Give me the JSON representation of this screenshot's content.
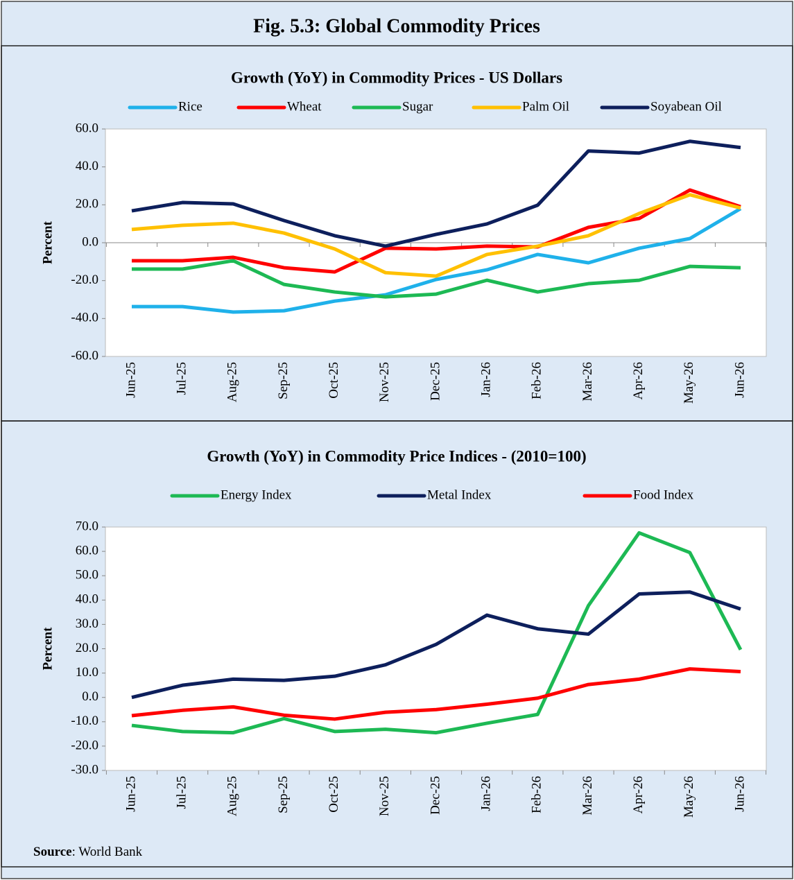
{
  "title": "Fig. 5.3: Global Commodity Prices",
  "source_label": "Source",
  "source_text": ": World Bank",
  "chart_data": [
    {
      "type": "line",
      "title": "Growth (YoY) in Commodity Prices - US Dollars",
      "y_label": "Percent",
      "categories": [
        "Jun-25",
        "Jul-25",
        "Aug-25",
        "Sep-25",
        "Oct-25",
        "Nov-25",
        "Dec-25",
        "Jan-26",
        "Feb-26",
        "Mar-26",
        "Apr-26",
        "May-26",
        "Jun-26"
      ],
      "series": [
        {
          "name": "Rice",
          "color": "#1fb1ea",
          "values": [
            -33.7,
            -33.7,
            -36.6,
            -35.9,
            -30.8,
            -27.5,
            -19.4,
            -14.3,
            -6.2,
            -10.6,
            -2.9,
            2.2,
            18.0
          ]
        },
        {
          "name": "Wheat",
          "color": "#ff0000",
          "values": [
            -9.5,
            -9.5,
            -7.7,
            -13.2,
            -15.4,
            -2.9,
            -3.3,
            -1.8,
            -2.2,
            8.1,
            12.8,
            27.8,
            19.0
          ]
        },
        {
          "name": "Sugar",
          "color": "#1db954",
          "values": [
            -13.9,
            -13.9,
            -9.5,
            -22.0,
            -26.0,
            -28.6,
            -27.1,
            -19.8,
            -26.0,
            -21.6,
            -19.8,
            -12.5,
            -13.2
          ]
        },
        {
          "name": "Palm Oil",
          "color": "#ffc000",
          "values": [
            7.0,
            9.2,
            10.3,
            5.1,
            -3.3,
            -15.8,
            -17.6,
            -6.2,
            -1.8,
            3.7,
            15.4,
            25.3,
            18.3
          ]
        },
        {
          "name": "Soyabean Oil",
          "color": "#0d1f5c",
          "values": [
            16.8,
            21.2,
            20.5,
            11.7,
            3.7,
            -1.8,
            4.4,
            9.9,
            19.8,
            48.4,
            47.3,
            53.5,
            50.2
          ]
        }
      ],
      "ylim": [
        -60,
        60
      ],
      "yticks": [
        {
          "value": -60,
          "label": "-60.0"
        },
        {
          "value": -40,
          "label": "-40.0"
        },
        {
          "value": -20,
          "label": "-20.0"
        },
        {
          "value": 0,
          "label": "0.0"
        },
        {
          "value": 20,
          "label": "20.0"
        },
        {
          "value": 40,
          "label": "40.0"
        },
        {
          "value": 60,
          "label": "60.0"
        }
      ],
      "grid": false
    },
    {
      "type": "line",
      "title": "Growth (YoY) in Commodity Price Indices -  (2010=100)",
      "y_label": "Percent",
      "categories": [
        "Jun-25",
        "Jul-25",
        "Aug-25",
        "Sep-25",
        "Oct-25",
        "Nov-25",
        "Dec-25",
        "Jan-26",
        "Feb-26",
        "Mar-26",
        "Apr-26",
        "May-26",
        "Jun-26"
      ],
      "series": [
        {
          "name": "Energy Index",
          "color": "#1db954",
          "values": [
            -11.5,
            -14.0,
            -14.5,
            -8.7,
            -14.0,
            -13.1,
            -14.5,
            -10.6,
            -7.0,
            37.7,
            67.6,
            59.5,
            19.6
          ]
        },
        {
          "name": "Metal Index",
          "color": "#0d1f5c",
          "values": [
            0.0,
            5.0,
            7.5,
            7.0,
            8.7,
            13.4,
            21.8,
            33.8,
            28.2,
            26.0,
            42.5,
            43.3,
            36.3
          ]
        },
        {
          "name": "Food Index",
          "color": "#ff0000",
          "values": [
            -7.5,
            -5.3,
            -3.9,
            -7.3,
            -8.9,
            -6.1,
            -5.0,
            -2.8,
            -0.3,
            5.3,
            7.5,
            11.7,
            10.6
          ]
        }
      ],
      "ylim": [
        -30,
        70
      ],
      "yticks": [
        {
          "value": -30,
          "label": "-30.0"
        },
        {
          "value": -20,
          "label": "-20.0"
        },
        {
          "value": -10,
          "label": "-10.0"
        },
        {
          "value": 0,
          "label": "0.0"
        },
        {
          "value": 10,
          "label": "10.0"
        },
        {
          "value": 20,
          "label": "20.0"
        },
        {
          "value": 30,
          "label": "30.0"
        },
        {
          "value": 40,
          "label": "40.0"
        },
        {
          "value": 50,
          "label": "50.0"
        },
        {
          "value": 60,
          "label": "60.0"
        },
        {
          "value": 70,
          "label": "70.0"
        }
      ],
      "grid": false
    }
  ]
}
